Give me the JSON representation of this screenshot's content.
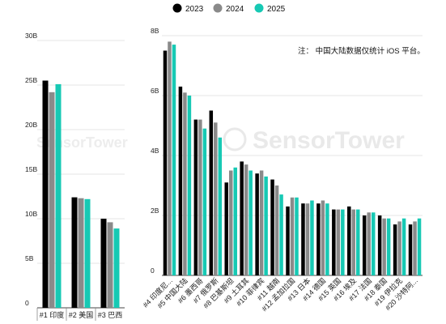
{
  "colors": {
    "s2023": "#000000",
    "s2024": "#8a8a8a",
    "s2025": "#17c9b4",
    "grid": "#e6e6e6",
    "axis": "#444444"
  },
  "legend": [
    "2023",
    "2024",
    "2025"
  ],
  "note": "注： 中国大陆数据仅统计 iOS 平台。",
  "watermark": "SensorTower",
  "chart_data": [
    {
      "type": "bar",
      "categories": [
        "#1 印度",
        "#2 美国",
        "#3 巴西"
      ],
      "y_ticks": [
        "0",
        "5B",
        "10B",
        "15B",
        "20B",
        "25B",
        "30B"
      ],
      "ylim": [
        0,
        30
      ],
      "series": [
        {
          "name": "2023",
          "values": [
            25.5,
            12.4,
            10.0
          ]
        },
        {
          "name": "2024",
          "values": [
            24.2,
            12.3,
            9.6
          ]
        },
        {
          "name": "2025",
          "values": [
            25.1,
            12.2,
            8.9
          ]
        }
      ]
    },
    {
      "type": "bar",
      "categories": [
        "#4 印度尼...",
        "#5 中国大陆",
        "#6 墨西哥",
        "#7 俄罗斯",
        "#8 巴基斯坦",
        "#9 土耳其",
        "#10 菲律宾",
        "#11 越南",
        "#12 孟加拉国",
        "#13 日本",
        "#14 德国",
        "#15 英国",
        "#16 埃及",
        "#17 法国",
        "#18 泰国",
        "#19 伊拉克",
        "#20 沙特阿..."
      ],
      "y_ticks": [
        "0",
        "2B",
        "4B",
        "6B",
        "8B"
      ],
      "ylim": [
        0,
        8
      ],
      "series": [
        {
          "name": "2023",
          "values": [
            7.5,
            6.3,
            5.2,
            5.5,
            3.1,
            3.8,
            3.4,
            3.2,
            2.3,
            2.4,
            2.4,
            2.2,
            2.3,
            2.0,
            2.0,
            1.7,
            1.7
          ]
        },
        {
          "name": "2024",
          "values": [
            7.8,
            6.1,
            5.2,
            5.1,
            3.5,
            3.7,
            3.5,
            3.0,
            2.6,
            2.4,
            2.5,
            2.2,
            2.2,
            2.1,
            1.9,
            1.8,
            1.8
          ]
        },
        {
          "name": "2025",
          "values": [
            7.7,
            6.0,
            4.9,
            4.6,
            3.6,
            3.5,
            3.3,
            2.7,
            2.6,
            2.5,
            2.4,
            2.2,
            2.2,
            2.1,
            1.9,
            1.9,
            1.9
          ]
        }
      ]
    }
  ]
}
